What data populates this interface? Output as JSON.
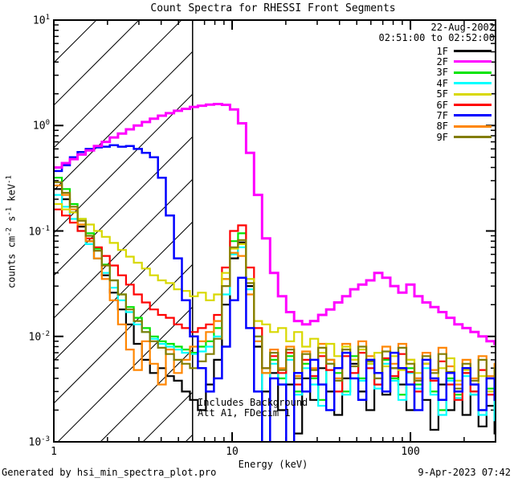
{
  "title": "Count Spectra for RHESSI Front Segments",
  "legend": {
    "date": "22-Aug-2002",
    "time_range": "02:51:00 to 02:52:00",
    "items": [
      {
        "label": "1F",
        "color": "#000000"
      },
      {
        "label": "2F",
        "color": "#FF00FF"
      },
      {
        "label": "3F",
        "color": "#00E400"
      },
      {
        "label": "4F",
        "color": "#00FFFF"
      },
      {
        "label": "5F",
        "color": "#D8D800"
      },
      {
        "label": "6F",
        "color": "#FF0000"
      },
      {
        "label": "7F",
        "color": "#0000FF"
      },
      {
        "label": "8F",
        "color": "#FF8600"
      },
      {
        "label": "9F",
        "color": "#827D00"
      }
    ]
  },
  "annotation": {
    "line1": "Includes Background",
    "line2": "Att A1, FDecim 1"
  },
  "footer": {
    "left": "Generated by hsi_min_spectra_plot.pro",
    "right": "9-Apr-2023 07:42"
  },
  "chart_data": {
    "type": "line",
    "subtype": "stepped-histogram-spectra",
    "title": "Count Spectra for RHESSI Front Segments",
    "xlabel": "Energy (keV)",
    "ylabel": "counts cm^-2 s^-1 keV^-1",
    "ylabel_parts": [
      {
        "t": "counts cm"
      },
      {
        "t": "-2",
        "sup": true
      },
      {
        "t": " s"
      },
      {
        "t": "-1",
        "sup": true
      },
      {
        "t": " keV"
      },
      {
        "t": "-1",
        "sup": true
      }
    ],
    "x_scale": "log",
    "y_scale": "log",
    "xlim": [
      1,
      300
    ],
    "ylim": [
      0.001,
      10
    ],
    "x_major_ticks": [
      1,
      10,
      100
    ],
    "x_tick_labels": [
      "1",
      "10",
      "100"
    ],
    "y_major_exponents": [
      1,
      0,
      -1,
      -2,
      -3
    ],
    "grid": false,
    "legend_position": "top-right-inside",
    "hatch_region_keV": {
      "from": 1,
      "to": 6
    },
    "vline_keV": 6,
    "energies_keV": [
      1.0,
      1.11,
      1.23,
      1.36,
      1.51,
      1.68,
      1.86,
      2.06,
      2.29,
      2.54,
      2.81,
      3.12,
      3.46,
      3.84,
      4.25,
      4.72,
      5.23,
      5.8,
      6.43,
      7.13,
      7.91,
      8.77,
      9.73,
      10.79,
      11.97,
      13.27,
      14.72,
      16.32,
      18.1,
      20.08,
      22.27,
      24.7,
      27.39,
      30.38,
      33.69,
      37.37,
      41.44,
      45.96,
      50.97,
      56.53,
      62.7,
      69.53,
      77.11,
      85.52,
      94.85,
      105.2,
      116.7,
      129.4,
      143.5,
      159.1,
      176.5,
      195.7,
      217.1,
      240.7,
      267.0,
      296.1
    ],
    "series": [
      {
        "name": "1F",
        "color": "#000000",
        "width": 2.2,
        "values": [
          0.25,
          0.2,
          0.15,
          0.11,
          0.08,
          0.055,
          0.038,
          0.026,
          0.018,
          0.013,
          0.0085,
          0.006,
          0.0045,
          0.005,
          0.0042,
          0.0038,
          0.003,
          0.0025,
          0.002,
          0.0035,
          0.006,
          0.02,
          0.055,
          0.078,
          0.03,
          0.008,
          0.003,
          0.0045,
          0.002,
          0.0035,
          0.0012,
          0.004,
          0.0025,
          0.005,
          0.003,
          0.0018,
          0.004,
          0.0055,
          0.003,
          0.002,
          0.0045,
          0.0028,
          0.005,
          0.0035,
          0.002,
          0.004,
          0.0025,
          0.0013,
          0.0035,
          0.002,
          0.003,
          0.0018,
          0.0028,
          0.0014,
          0.0022,
          0.0012
        ]
      },
      {
        "name": "2F",
        "color": "#FF00FF",
        "width": 3,
        "values": [
          0.4,
          0.44,
          0.48,
          0.53,
          0.58,
          0.64,
          0.7,
          0.77,
          0.84,
          0.92,
          1.0,
          1.08,
          1.16,
          1.24,
          1.31,
          1.38,
          1.44,
          1.5,
          1.54,
          1.58,
          1.6,
          1.57,
          1.42,
          1.05,
          0.55,
          0.22,
          0.085,
          0.04,
          0.024,
          0.017,
          0.014,
          0.013,
          0.014,
          0.016,
          0.018,
          0.021,
          0.024,
          0.028,
          0.031,
          0.034,
          0.04,
          0.036,
          0.03,
          0.026,
          0.031,
          0.024,
          0.021,
          0.019,
          0.017,
          0.015,
          0.013,
          0.012,
          0.011,
          0.01,
          0.009,
          0.0085
        ]
      },
      {
        "name": "3F",
        "color": "#00E400",
        "width": 2.2,
        "values": [
          0.32,
          0.25,
          0.18,
          0.13,
          0.095,
          0.068,
          0.048,
          0.034,
          0.025,
          0.019,
          0.015,
          0.012,
          0.01,
          0.009,
          0.0085,
          0.008,
          0.0075,
          0.007,
          0.008,
          0.009,
          0.012,
          0.035,
          0.08,
          0.095,
          0.035,
          0.01,
          0.0045,
          0.006,
          0.004,
          0.0065,
          0.003,
          0.0055,
          0.004,
          0.0025,
          0.006,
          0.0045,
          0.003,
          0.0065,
          0.004,
          0.0055,
          0.0035,
          0.006,
          0.004,
          0.0028,
          0.005,
          0.0035,
          0.0055,
          0.003,
          0.002,
          0.004,
          0.0028,
          0.0045,
          0.003,
          0.002,
          0.0032,
          0.0018
        ]
      },
      {
        "name": "4F",
        "color": "#00FFFF",
        "width": 2.2,
        "values": [
          0.22,
          0.17,
          0.13,
          0.1,
          0.075,
          0.055,
          0.04,
          0.029,
          0.022,
          0.017,
          0.013,
          0.011,
          0.0095,
          0.0085,
          0.008,
          0.0075,
          0.007,
          0.0068,
          0.0072,
          0.008,
          0.01,
          0.025,
          0.06,
          0.07,
          0.028,
          0.009,
          0.0008,
          0.0055,
          0.0035,
          0.006,
          0.0028,
          0.005,
          0.0035,
          0.0022,
          0.0055,
          0.004,
          0.0028,
          0.006,
          0.0038,
          0.005,
          0.0032,
          0.0055,
          0.0038,
          0.0025,
          0.0045,
          0.0032,
          0.005,
          0.0028,
          0.0018,
          0.0038,
          0.0026,
          0.0042,
          0.0028,
          0.0018,
          0.003,
          0.0016
        ]
      },
      {
        "name": "5F",
        "color": "#D8D800",
        "width": 2.2,
        "values": [
          0.18,
          0.16,
          0.15,
          0.13,
          0.115,
          0.1,
          0.088,
          0.077,
          0.066,
          0.057,
          0.05,
          0.044,
          0.038,
          0.034,
          0.032,
          0.028,
          0.027,
          0.024,
          0.026,
          0.022,
          0.025,
          0.04,
          0.068,
          0.075,
          0.035,
          0.014,
          0.013,
          0.011,
          0.012,
          0.009,
          0.011,
          0.008,
          0.0095,
          0.007,
          0.0085,
          0.0065,
          0.008,
          0.006,
          0.0075,
          0.0055,
          0.007,
          0.0052,
          0.0065,
          0.0048,
          0.006,
          0.0045,
          0.0055,
          0.004,
          0.005,
          0.0062,
          0.0038,
          0.0048,
          0.0035,
          0.0042,
          0.003,
          0.0035
        ]
      },
      {
        "name": "6F",
        "color": "#FF0000",
        "width": 2.2,
        "values": [
          0.16,
          0.14,
          0.12,
          0.1,
          0.085,
          0.07,
          0.058,
          0.047,
          0.038,
          0.031,
          0.025,
          0.021,
          0.018,
          0.016,
          0.015,
          0.013,
          0.012,
          0.011,
          0.012,
          0.013,
          0.016,
          0.045,
          0.1,
          0.113,
          0.045,
          0.012,
          0.005,
          0.0065,
          0.0045,
          0.007,
          0.0035,
          0.006,
          0.0042,
          0.0065,
          0.0048,
          0.003,
          0.0065,
          0.0045,
          0.007,
          0.005,
          0.0035,
          0.0062,
          0.0042,
          0.0068,
          0.0046,
          0.003,
          0.0055,
          0.0038,
          0.0058,
          0.0035,
          0.0025,
          0.0045,
          0.003,
          0.0048,
          0.0028,
          0.0038
        ]
      },
      {
        "name": "7F",
        "color": "#0000FF",
        "width": 2.5,
        "values": [
          0.37,
          0.42,
          0.5,
          0.56,
          0.6,
          0.62,
          0.63,
          0.65,
          0.63,
          0.64,
          0.6,
          0.55,
          0.5,
          0.32,
          0.14,
          0.055,
          0.022,
          0.01,
          0.005,
          0.003,
          0.004,
          0.008,
          0.022,
          0.036,
          0.012,
          0.003,
          0.0009,
          0.004,
          0.0035,
          0.0008,
          0.0045,
          0.003,
          0.006,
          0.0035,
          0.002,
          0.005,
          0.007,
          0.004,
          0.0025,
          0.006,
          0.0045,
          0.003,
          0.007,
          0.005,
          0.0035,
          0.002,
          0.006,
          0.004,
          0.0025,
          0.0045,
          0.003,
          0.005,
          0.0035,
          0.002,
          0.004,
          0.0025
        ]
      },
      {
        "name": "8F",
        "color": "#FF8600",
        "width": 2.2,
        "values": [
          0.27,
          0.22,
          0.16,
          0.115,
          0.08,
          0.055,
          0.035,
          0.022,
          0.013,
          0.0075,
          0.0048,
          0.009,
          0.0055,
          0.0035,
          0.0075,
          0.0045,
          0.006,
          0.008,
          0.009,
          0.011,
          0.014,
          0.035,
          0.062,
          0.058,
          0.025,
          0.009,
          0.0045,
          0.0075,
          0.005,
          0.008,
          0.0042,
          0.0072,
          0.005,
          0.0085,
          0.006,
          0.004,
          0.0085,
          0.006,
          0.009,
          0.0065,
          0.0045,
          0.008,
          0.0055,
          0.0085,
          0.006,
          0.004,
          0.007,
          0.0048,
          0.0078,
          0.0052,
          0.0035,
          0.006,
          0.004,
          0.0065,
          0.0042,
          0.0055
        ]
      },
      {
        "name": "9F",
        "color": "#827D00",
        "width": 2.2,
        "values": [
          0.29,
          0.23,
          0.17,
          0.125,
          0.09,
          0.065,
          0.047,
          0.034,
          0.025,
          0.018,
          0.014,
          0.011,
          0.009,
          0.0078,
          0.0068,
          0.006,
          0.0055,
          0.005,
          0.0058,
          0.0068,
          0.0095,
          0.03,
          0.07,
          0.082,
          0.032,
          0.01,
          0.005,
          0.007,
          0.0048,
          0.0075,
          0.004,
          0.0068,
          0.0048,
          0.0078,
          0.0055,
          0.0038,
          0.0075,
          0.0052,
          0.008,
          0.0058,
          0.004,
          0.0072,
          0.005,
          0.0078,
          0.0055,
          0.0038,
          0.0065,
          0.0045,
          0.0068,
          0.0046,
          0.0032,
          0.0055,
          0.0038,
          0.006,
          0.004,
          0.005
        ]
      }
    ],
    "draw_order": [
      "1F",
      "3F",
      "4F",
      "6F",
      "8F",
      "5F",
      "9F",
      "7F",
      "2F"
    ]
  }
}
